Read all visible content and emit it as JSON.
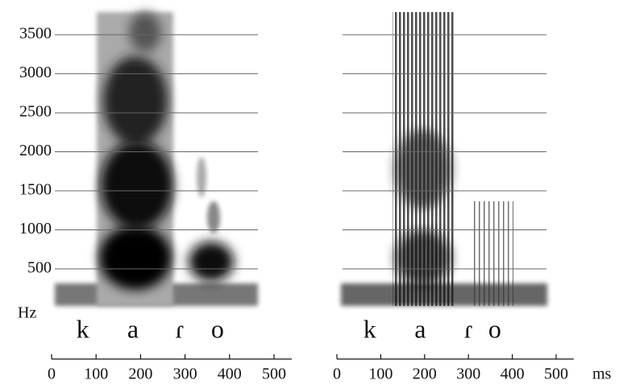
{
  "chart_data": [
    {
      "type": "spectrogram",
      "y_label": "Hz",
      "ylim": [
        0,
        3800
      ],
      "yticks": [
        500,
        1000,
        1500,
        2000,
        2500,
        3000,
        3500
      ],
      "show_ytick_labels": true,
      "xlim": [
        0,
        500
      ],
      "xticks": [
        0,
        100,
        200,
        300,
        400,
        500
      ],
      "segments": [
        {
          "label": "k",
          "x": 70
        },
        {
          "label": "a",
          "x": 183
        },
        {
          "label": "ɾ",
          "x": 288
        },
        {
          "label": "o",
          "x": 373
        }
      ]
    },
    {
      "type": "spectrogram",
      "x_label": "ms",
      "ylim": [
        0,
        3800
      ],
      "yticks": [
        500,
        1000,
        1500,
        2000,
        2500,
        3000,
        3500
      ],
      "show_ytick_labels": false,
      "xlim": [
        0,
        500
      ],
      "xticks": [
        0,
        100,
        200,
        300,
        400,
        500
      ],
      "segments": [
        {
          "label": "k",
          "x": 75
        },
        {
          "label": "a",
          "x": 190
        },
        {
          "label": "ɾ",
          "x": 300
        },
        {
          "label": "o",
          "x": 360
        }
      ]
    }
  ]
}
